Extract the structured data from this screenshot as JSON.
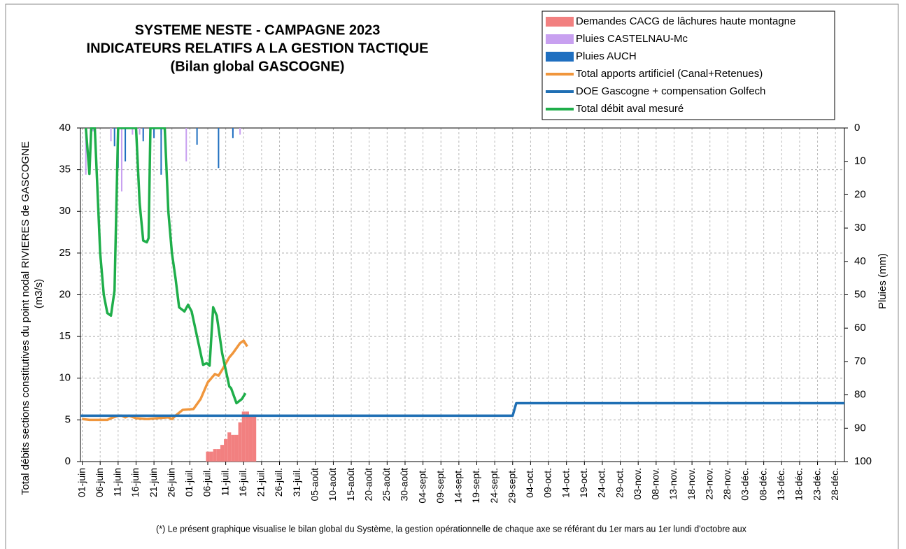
{
  "chart_data": {
    "type": "combo",
    "title": [
      "SYSTEME NESTE - CAMPAGNE 2023",
      "INDICATEURS RELATIFS A LA GESTION TACTIQUE",
      "(Bilan global GASCOGNE)"
    ],
    "ylabel": [
      "Total débits sections constitutives du point nodal RIVIERES de GASCOGNE",
      "(m3/s)"
    ],
    "y2label": "Pluies (mm)",
    "footnote": "(*) Le présent graphique visualise le bilan global du Système, la gestion opérationnelle de chaque axe se référant du 1er mars au 1er lundi d'octobre aux",
    "legend": "top-right",
    "grid": true,
    "xlim": [
      -0.5,
      212.5
    ],
    "xticks": [
      {
        "value": 0,
        "label": "01-juin"
      },
      {
        "value": 5,
        "label": "06-juin"
      },
      {
        "value": 10,
        "label": "11-juin"
      },
      {
        "value": 15,
        "label": "16-juin"
      },
      {
        "value": 20,
        "label": "21-juin"
      },
      {
        "value": 25,
        "label": "26-juin"
      },
      {
        "value": 30,
        "label": "01-juil."
      },
      {
        "value": 35,
        "label": "06-juil."
      },
      {
        "value": 40,
        "label": "11-juil."
      },
      {
        "value": 45,
        "label": "16-juil."
      },
      {
        "value": 50,
        "label": "21-juil."
      },
      {
        "value": 55,
        "label": "26-juil."
      },
      {
        "value": 60,
        "label": "31-juil."
      },
      {
        "value": 65,
        "label": "05-août"
      },
      {
        "value": 70,
        "label": "10-août"
      },
      {
        "value": 75,
        "label": "15-août"
      },
      {
        "value": 80,
        "label": "20-août"
      },
      {
        "value": 85,
        "label": "25-août"
      },
      {
        "value": 90,
        "label": "30-août"
      },
      {
        "value": 95,
        "label": "04-sept."
      },
      {
        "value": 100,
        "label": "09-sept."
      },
      {
        "value": 105,
        "label": "14-sept."
      },
      {
        "value": 110,
        "label": "19-sept."
      },
      {
        "value": 115,
        "label": "24-sept."
      },
      {
        "value": 120,
        "label": "29-sept."
      },
      {
        "value": 125,
        "label": "04-oct."
      },
      {
        "value": 130,
        "label": "09-oct."
      },
      {
        "value": 135,
        "label": "14-oct."
      },
      {
        "value": 140,
        "label": "19-oct."
      },
      {
        "value": 145,
        "label": "24-oct."
      },
      {
        "value": 150,
        "label": "29-oct."
      },
      {
        "value": 155,
        "label": "03-nov."
      },
      {
        "value": 160,
        "label": "08-nov."
      },
      {
        "value": 165,
        "label": "13-nov."
      },
      {
        "value": 170,
        "label": "18-nov."
      },
      {
        "value": 175,
        "label": "23-nov."
      },
      {
        "value": 180,
        "label": "28-nov."
      },
      {
        "value": 185,
        "label": "03-déc."
      },
      {
        "value": 190,
        "label": "08-déc."
      },
      {
        "value": 195,
        "label": "13-déc."
      },
      {
        "value": 200,
        "label": "18-déc."
      },
      {
        "value": 205,
        "label": "23-déc."
      },
      {
        "value": 210,
        "label": "28-déc."
      }
    ],
    "ylim": [
      0,
      40
    ],
    "yticks": [
      0,
      5,
      10,
      15,
      20,
      25,
      30,
      35,
      40
    ],
    "y2lim": [
      100,
      0
    ],
    "y2ticks": [
      0,
      10,
      20,
      30,
      40,
      50,
      60,
      70,
      80,
      90,
      100
    ],
    "series": [
      {
        "name": "Demandes CACG de lâchures haute montagne",
        "type": "bar",
        "color": "#f28080",
        "axis": "y",
        "x": [
          35,
          36,
          37,
          38,
          39,
          40,
          41,
          42,
          43,
          44,
          45,
          46,
          47,
          48
        ],
        "values": [
          1.2,
          1.2,
          1.5,
          1.5,
          2,
          2.7,
          3.5,
          3.2,
          3.2,
          4.7,
          6,
          6,
          5.5,
          5.5
        ]
      },
      {
        "name": "Pluies CASTELNAU-Mc",
        "type": "bar",
        "color": "#c8a0f0",
        "axis": "y2",
        "x": [
          1,
          3,
          8,
          11,
          14,
          16,
          17,
          20,
          22,
          29,
          42,
          44
        ],
        "values": [
          14,
          1,
          4,
          19,
          2,
          2,
          3,
          2,
          2,
          10,
          1,
          2
        ]
      },
      {
        "name": "Pluies  AUCH",
        "type": "bar",
        "color": "#1f6fc0",
        "axis": "y2",
        "x": [
          9,
          10,
          12,
          17,
          20,
          22,
          32,
          38,
          42
        ],
        "values": [
          5.5,
          12,
          10,
          4,
          3,
          14,
          5,
          12,
          3
        ]
      },
      {
        "name": "Total apports artificiel (Canal+Retenues)",
        "type": "line",
        "color": "#f0963c",
        "axis": "y",
        "x": [
          0,
          2,
          4,
          7,
          8,
          10,
          11,
          12,
          13,
          15,
          18,
          21,
          24,
          25,
          26,
          28,
          31,
          33,
          35,
          37,
          38,
          39,
          41,
          42,
          44,
          45,
          46
        ],
        "values": [
          5.1,
          5,
          5,
          5,
          5.2,
          5.5,
          5.5,
          5.3,
          5.5,
          5.2,
          5.1,
          5.2,
          5.3,
          5.1,
          5.5,
          6.2,
          6.3,
          7.5,
          9.5,
          10.5,
          10.3,
          11,
          12.5,
          13,
          14.2,
          14.5,
          13.8
        ]
      },
      {
        "name": "DOE Gascogne + compensation Golfech",
        "type": "line",
        "color": "#1f6fb4",
        "axis": "y",
        "x": [
          -0.5,
          120,
          121,
          212.5
        ],
        "values": [
          5.5,
          5.5,
          7,
          7
        ]
      },
      {
        "name": "Total débit aval mesuré",
        "type": "line",
        "color": "#1fae4a",
        "axis": "y",
        "x": [
          1,
          2,
          2.5,
          3.5,
          5,
          6,
          7,
          8,
          9,
          10,
          15,
          16,
          17,
          18,
          18.5,
          19,
          23,
          24,
          25,
          26,
          27,
          28.5,
          29.5,
          30.5,
          32.5,
          33.7,
          34.7,
          35.5,
          36.5,
          37.5,
          39,
          41,
          41.5,
          43,
          44.5,
          45.5
        ],
        "values": [
          40,
          34.5,
          40,
          40,
          25,
          20,
          17.8,
          17.5,
          20.5,
          40,
          40,
          31,
          26.5,
          26.3,
          26.8,
          40,
          40,
          30,
          25,
          22,
          18.5,
          18,
          18.8,
          18,
          14,
          11.6,
          11.8,
          11.5,
          18.5,
          17.5,
          13,
          9,
          8.8,
          7,
          7.5,
          8.2
        ]
      }
    ]
  }
}
